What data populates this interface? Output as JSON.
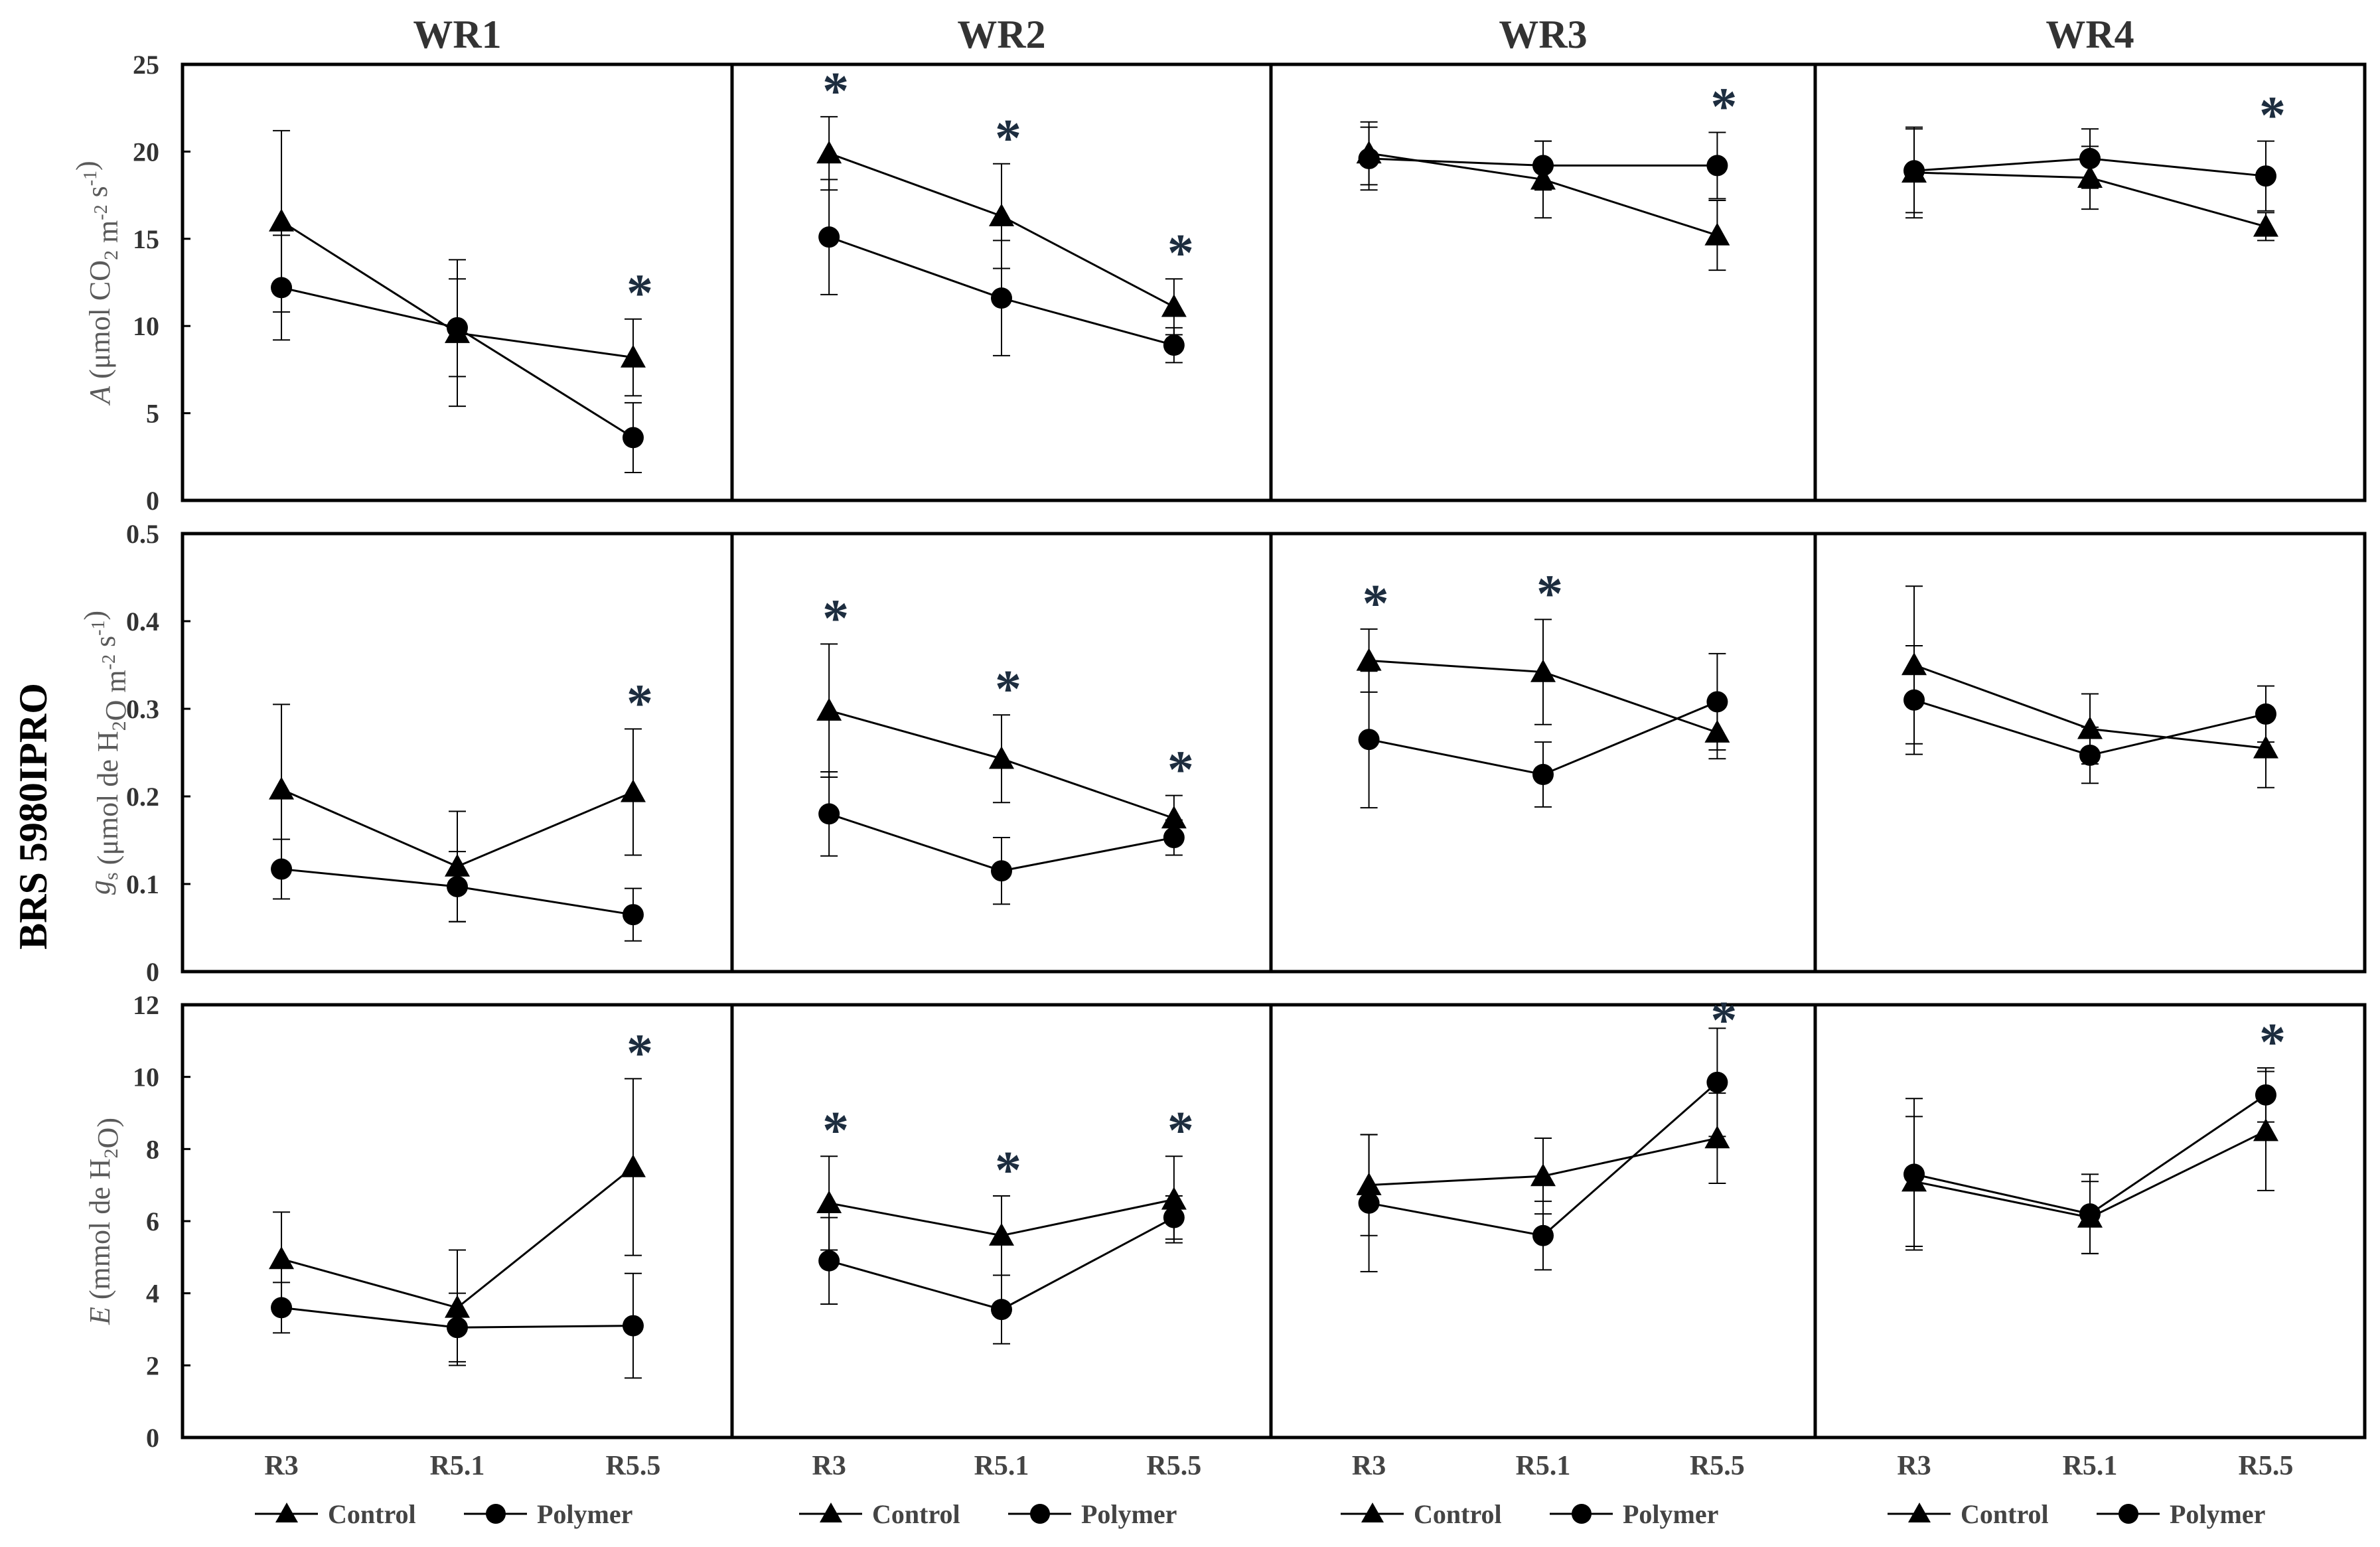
{
  "figure": {
    "side_label": "BRS 5980IPRO",
    "columns": [
      "WR1",
      "WR2",
      "WR3",
      "WR4"
    ],
    "x_categories": [
      "R3",
      "R5.1",
      "R5.5"
    ],
    "rows": [
      {
        "ylabel_parts": [
          {
            "t": "A",
            "i": true
          },
          {
            "t": " (μmol CO"
          },
          {
            "t": "2",
            "sub": true
          },
          {
            "t": " m"
          },
          {
            "t": "-2",
            "sup": true
          },
          {
            "t": " s"
          },
          {
            "t": "-1",
            "sup": true
          },
          {
            "t": ")"
          }
        ],
        "ylim": [
          0,
          25
        ],
        "ticks": [
          0,
          5,
          10,
          15,
          20,
          25
        ],
        "tick_labels": [
          "0",
          "5",
          "10",
          "15",
          "20",
          "25"
        ]
      },
      {
        "ylabel_parts": [
          {
            "t": "g",
            "i": true
          },
          {
            "t": "s",
            "sub": true
          },
          {
            "t": " (μmol de H"
          },
          {
            "t": "2",
            "sub": true
          },
          {
            "t": "O m"
          },
          {
            "t": "-2",
            "sup": true
          },
          {
            "t": " s"
          },
          {
            "t": "-1",
            "sup": true
          },
          {
            "t": ")"
          }
        ],
        "ylim": [
          0,
          0.5
        ],
        "ticks": [
          0,
          0.1,
          0.2,
          0.3,
          0.4,
          0.5
        ],
        "tick_labels": [
          "0",
          "0.1",
          "0.2",
          "0.3",
          "0.4",
          "0.5"
        ]
      },
      {
        "ylabel_parts": [
          {
            "t": "E",
            "i": true
          },
          {
            "t": " (mmol de H"
          },
          {
            "t": "2",
            "sub": true
          },
          {
            "t": "O)"
          }
        ],
        "ylim": [
          0,
          12
        ],
        "ticks": [
          0,
          2,
          4,
          6,
          8,
          10,
          12
        ],
        "tick_labels": [
          "0",
          "2",
          "4",
          "6",
          "8",
          "10",
          "12"
        ]
      }
    ],
    "legend": [
      {
        "label": "Control",
        "marker": "triangle"
      },
      {
        "label": "Polymer",
        "marker": "circle"
      }
    ],
    "significance_symbol": "*",
    "colors": {
      "line": "#000000",
      "asterisk": "#1d2d3f",
      "ylabel": "#5a5a5a"
    }
  },
  "chart_data": [
    {
      "type": "line",
      "title": "WR1",
      "row": 0,
      "col": 0,
      "ylabel": "A (μmol CO2 m-2 s-1)",
      "categories": [
        "R3",
        "R5.1",
        "R5.5"
      ],
      "ylim": [
        0,
        25
      ],
      "series": [
        {
          "name": "Control",
          "values": [
            16.0,
            9.6,
            8.2
          ],
          "errors": [
            5.2,
            4.2,
            2.2
          ]
        },
        {
          "name": "Polymer",
          "values": [
            12.2,
            9.9,
            3.6
          ],
          "errors": [
            3.0,
            2.8,
            2.0
          ]
        }
      ],
      "significant": [
        false,
        false,
        true
      ]
    },
    {
      "type": "line",
      "title": "WR2",
      "row": 0,
      "col": 1,
      "ylabel": "A (μmol CO2 m-2 s-1)",
      "categories": [
        "R3",
        "R5.1",
        "R5.5"
      ],
      "ylim": [
        0,
        25
      ],
      "series": [
        {
          "name": "Control",
          "values": [
            19.9,
            16.3,
            11.1
          ],
          "errors": [
            2.1,
            3.0,
            1.6
          ]
        },
        {
          "name": "Polymer",
          "values": [
            15.1,
            11.6,
            8.9
          ],
          "errors": [
            3.3,
            3.3,
            1.0
          ]
        }
      ],
      "significant": [
        true,
        true,
        true
      ]
    },
    {
      "type": "line",
      "title": "WR3",
      "row": 0,
      "col": 2,
      "ylabel": "A (μmol CO2 m-2 s-1)",
      "categories": [
        "R3",
        "R5.1",
        "R5.5"
      ],
      "ylim": [
        0,
        25
      ],
      "series": [
        {
          "name": "Control",
          "values": [
            19.9,
            18.4,
            15.2
          ],
          "errors": [
            1.8,
            2.2,
            2.0
          ]
        },
        {
          "name": "Polymer",
          "values": [
            19.6,
            19.2,
            19.2
          ],
          "errors": [
            1.8,
            1.4,
            1.9
          ]
        }
      ],
      "significant": [
        false,
        false,
        true
      ]
    },
    {
      "type": "line",
      "title": "WR4",
      "row": 0,
      "col": 3,
      "ylabel": "A (μmol CO2 m-2 s-1)",
      "categories": [
        "R3",
        "R5.1",
        "R5.5"
      ],
      "ylim": [
        0,
        25
      ],
      "series": [
        {
          "name": "Control",
          "values": [
            18.8,
            18.5,
            15.7
          ],
          "errors": [
            2.6,
            1.8,
            0.8
          ]
        },
        {
          "name": "Polymer",
          "values": [
            18.9,
            19.6,
            18.6
          ],
          "errors": [
            2.4,
            1.7,
            2.0
          ]
        }
      ],
      "significant": [
        false,
        false,
        true
      ]
    },
    {
      "type": "line",
      "title": "WR1",
      "row": 1,
      "col": 0,
      "ylabel": "gs (μmol de H2O m-2 s-1)",
      "categories": [
        "R3",
        "R5.1",
        "R5.5"
      ],
      "ylim": [
        0,
        0.5
      ],
      "series": [
        {
          "name": "Control",
          "values": [
            0.208,
            0.12,
            0.205
          ],
          "errors": [
            0.097,
            0.063,
            0.072
          ]
        },
        {
          "name": "Polymer",
          "values": [
            0.117,
            0.097,
            0.065
          ],
          "errors": [
            0.034,
            0.04,
            0.03
          ]
        }
      ],
      "significant": [
        false,
        false,
        true
      ]
    },
    {
      "type": "line",
      "title": "WR2",
      "row": 1,
      "col": 1,
      "ylabel": "gs (μmol de H2O m-2 s-1)",
      "categories": [
        "R3",
        "R5.1",
        "R5.5"
      ],
      "ylim": [
        0,
        0.5
      ],
      "series": [
        {
          "name": "Control",
          "values": [
            0.298,
            0.243,
            0.175
          ],
          "errors": [
            0.076,
            0.05,
            0.026
          ]
        },
        {
          "name": "Polymer",
          "values": [
            0.18,
            0.115,
            0.153
          ],
          "errors": [
            0.048,
            0.038,
            0.02
          ]
        }
      ],
      "significant": [
        true,
        true,
        true
      ]
    },
    {
      "type": "line",
      "title": "WR3",
      "row": 1,
      "col": 2,
      "ylabel": "gs (μmol de H2O m-2 s-1)",
      "categories": [
        "R3",
        "R5.1",
        "R5.5"
      ],
      "ylim": [
        0,
        0.5
      ],
      "series": [
        {
          "name": "Control",
          "values": [
            0.355,
            0.342,
            0.273
          ],
          "errors": [
            0.036,
            0.06,
            0.03
          ]
        },
        {
          "name": "Polymer",
          "values": [
            0.265,
            0.225,
            0.308
          ],
          "errors": [
            0.078,
            0.037,
            0.055
          ]
        }
      ],
      "significant": [
        true,
        true,
        false
      ]
    },
    {
      "type": "line",
      "title": "WR4",
      "row": 1,
      "col": 3,
      "ylabel": "gs (μmol de H2O m-2 s-1)",
      "categories": [
        "R3",
        "R5.1",
        "R5.5"
      ],
      "ylim": [
        0,
        0.5
      ],
      "series": [
        {
          "name": "Control",
          "values": [
            0.35,
            0.277,
            0.255
          ],
          "errors": [
            0.09,
            0.04,
            0.045
          ]
        },
        {
          "name": "Polymer",
          "values": [
            0.31,
            0.247,
            0.294
          ],
          "errors": [
            0.062,
            0.032,
            0.032
          ]
        }
      ],
      "significant": [
        false,
        false,
        false
      ]
    },
    {
      "type": "line",
      "title": "WR1",
      "row": 2,
      "col": 0,
      "ylabel": "E (mmol de H2O)",
      "categories": [
        "R3",
        "R5.1",
        "R5.5"
      ],
      "ylim": [
        0,
        12
      ],
      "series": [
        {
          "name": "Control",
          "values": [
            4.95,
            3.6,
            7.5
          ],
          "errors": [
            1.3,
            1.6,
            2.45
          ]
        },
        {
          "name": "Polymer",
          "values": [
            3.6,
            3.05,
            3.1
          ],
          "errors": [
            0.7,
            0.95,
            1.45
          ]
        }
      ],
      "significant": [
        false,
        false,
        true
      ]
    },
    {
      "type": "line",
      "title": "WR2",
      "row": 2,
      "col": 1,
      "ylabel": "E (mmol de H2O)",
      "categories": [
        "R3",
        "R5.1",
        "R5.5"
      ],
      "ylim": [
        0,
        12
      ],
      "series": [
        {
          "name": "Control",
          "values": [
            6.5,
            5.6,
            6.6
          ],
          "errors": [
            1.3,
            1.1,
            1.2
          ]
        },
        {
          "name": "Polymer",
          "values": [
            4.9,
            3.55,
            6.1
          ],
          "errors": [
            1.2,
            0.95,
            0.6
          ]
        }
      ],
      "significant": [
        true,
        true,
        true
      ]
    },
    {
      "type": "line",
      "title": "WR3",
      "row": 2,
      "col": 2,
      "ylabel": "E (mmol de H2O)",
      "categories": [
        "R3",
        "R5.1",
        "R5.5"
      ],
      "ylim": [
        0,
        12
      ],
      "series": [
        {
          "name": "Control",
          "values": [
            7.0,
            7.25,
            8.3
          ],
          "errors": [
            1.4,
            1.05,
            1.25
          ]
        },
        {
          "name": "Polymer",
          "values": [
            6.5,
            5.6,
            9.85
          ],
          "errors": [
            1.9,
            0.95,
            1.5
          ]
        }
      ],
      "significant": [
        false,
        false,
        true
      ]
    },
    {
      "type": "line",
      "title": "WR4",
      "row": 2,
      "col": 3,
      "ylabel": "E (mmol de H2O)",
      "categories": [
        "R3",
        "R5.1",
        "R5.5"
      ],
      "ylim": [
        0,
        12
      ],
      "series": [
        {
          "name": "Control",
          "values": [
            7.1,
            6.1,
            8.5
          ],
          "errors": [
            1.8,
            1.0,
            1.65
          ]
        },
        {
          "name": "Polymer",
          "values": [
            7.3,
            6.2,
            9.5
          ],
          "errors": [
            2.1,
            1.1,
            0.75
          ]
        }
      ],
      "significant": [
        false,
        false,
        true
      ]
    }
  ]
}
